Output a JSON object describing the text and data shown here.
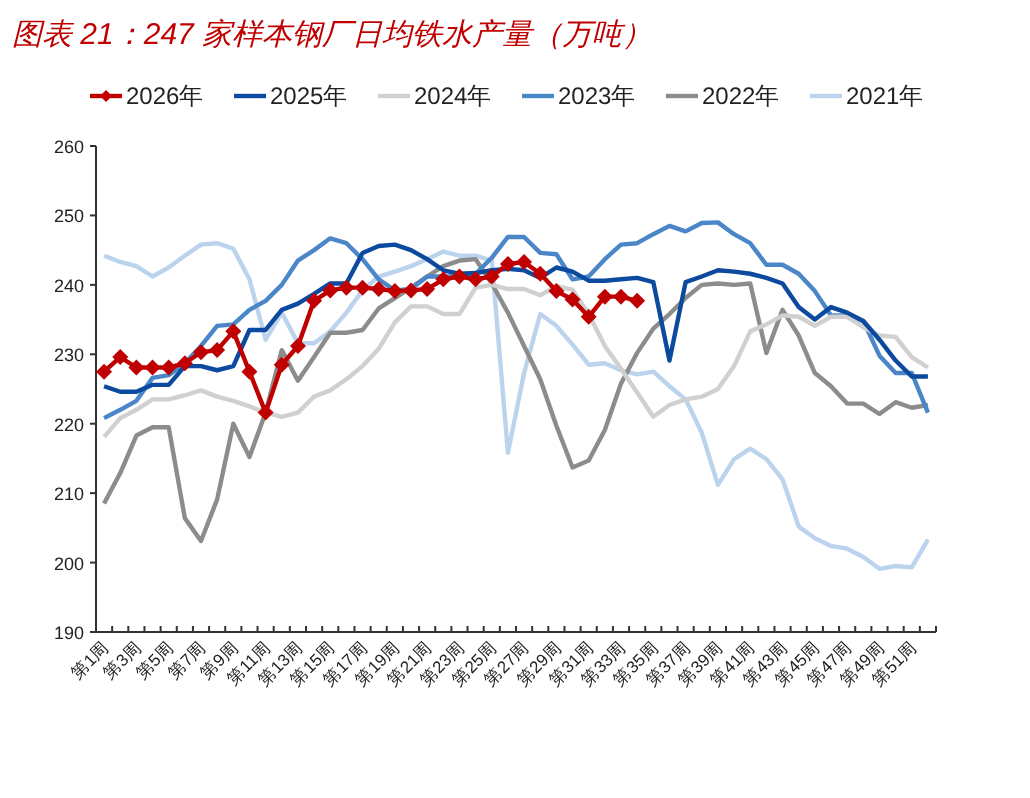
{
  "chart_data": {
    "type": "line",
    "title": "图表 21：247 家样本钢厂日均铁水产量（万吨）",
    "categories": [
      "第1周",
      null,
      "第3周",
      null,
      "第5周",
      null,
      "第7周",
      null,
      "第9周",
      null,
      "第11周",
      null,
      "第13周",
      null,
      "第15周",
      null,
      "第17周",
      null,
      "第19周",
      null,
      "第21周",
      null,
      "第23周",
      null,
      "第25周",
      null,
      "第27周",
      null,
      "第29周",
      null,
      "第31周",
      null,
      "第33周",
      null,
      "第35周",
      null,
      "第37周",
      null,
      "第39周",
      null,
      "第41周",
      null,
      "第43周",
      null,
      "第45周",
      null,
      "第47周",
      null,
      "第49周",
      null,
      "第51周",
      null
    ],
    "ylim": [
      190,
      260
    ],
    "yticks": [
      190,
      200,
      210,
      220,
      230,
      240,
      250,
      260
    ],
    "grid": false,
    "legend": "top",
    "series": [
      {
        "name": "2026年",
        "color": "#c00000",
        "marker": "diamond",
        "values": [
          227.5,
          229.6,
          228.1,
          228.1,
          228.1,
          228.7,
          230.3,
          230.6,
          233.3,
          227.5,
          221.6,
          228.5,
          231.2,
          237.7,
          239.2,
          239.6,
          239.6,
          239.4,
          239.1,
          239.2,
          239.4,
          240.8,
          241.2,
          240.8,
          241.2,
          243.0,
          243.3,
          241.6,
          239.1,
          237.9,
          235.4,
          238.3,
          238.3,
          237.7,
          null,
          null,
          null,
          null,
          null,
          null,
          null,
          null,
          null,
          null,
          null,
          null,
          null,
          null,
          null,
          null,
          null,
          null
        ]
      },
      {
        "name": "2025年",
        "color": "#0b4a9e",
        "values": [
          225.4,
          224.6,
          224.6,
          225.6,
          225.6,
          228.3,
          228.3,
          227.7,
          228.3,
          233.5,
          233.5,
          236.4,
          237.3,
          238.7,
          240.2,
          240.2,
          244.6,
          245.6,
          245.8,
          245.0,
          243.7,
          242.1,
          241.6,
          241.7,
          242.1,
          242.3,
          242.1,
          241.0,
          242.5,
          241.9,
          240.6,
          240.6,
          240.8,
          241.0,
          240.4,
          229.1,
          240.4,
          241.2,
          242.1,
          241.9,
          241.6,
          241.0,
          240.2,
          236.8,
          235.0,
          236.8,
          236.0,
          234.8,
          232.1,
          229.1,
          226.8,
          226.8
        ]
      },
      {
        "name": "2024年",
        "color": "#d0d0d0",
        "values": [
          218.1,
          220.8,
          222.0,
          223.5,
          223.5,
          224.1,
          224.8,
          223.9,
          223.3,
          222.5,
          221.6,
          221.0,
          221.6,
          223.9,
          224.8,
          226.4,
          228.3,
          230.8,
          234.6,
          236.9,
          236.9,
          235.8,
          235.8,
          239.6,
          240.0,
          239.4,
          239.4,
          238.5,
          239.8,
          239.3,
          235.8,
          231.2,
          227.9,
          224.5,
          221.0,
          222.7,
          223.5,
          223.9,
          225.0,
          228.3,
          233.3,
          234.3,
          235.6,
          235.4,
          234.1,
          235.4,
          235.4,
          233.9,
          232.7,
          232.5,
          229.6,
          228.1
        ]
      },
      {
        "name": "2023年",
        "color": "#4a86c8",
        "values": [
          220.8,
          222.0,
          223.3,
          226.6,
          227.0,
          228.7,
          231.2,
          234.1,
          234.3,
          236.4,
          237.7,
          240.0,
          243.5,
          245.0,
          246.7,
          246.0,
          243.7,
          240.8,
          239.2,
          239.4,
          241.2,
          241.2,
          241.2,
          241.6,
          243.9,
          246.9,
          246.9,
          244.6,
          244.4,
          240.8,
          241.2,
          243.7,
          245.8,
          246.0,
          247.3,
          248.5,
          247.7,
          248.9,
          249.0,
          247.3,
          246.0,
          242.9,
          242.9,
          241.6,
          239.1,
          235.6,
          235.6,
          234.8,
          229.8,
          227.3,
          227.3,
          221.6
        ]
      },
      {
        "name": "2022年",
        "color": "#8c8c8c",
        "values": [
          208.5,
          212.9,
          218.3,
          219.5,
          219.5,
          206.4,
          203.1,
          209.1,
          220.0,
          215.2,
          221.6,
          230.6,
          226.2,
          229.6,
          233.1,
          233.1,
          233.5,
          236.6,
          238.1,
          239.6,
          241.2,
          242.7,
          243.5,
          243.7,
          240.2,
          236.0,
          231.2,
          226.4,
          219.7,
          213.7,
          214.7,
          219.1,
          225.8,
          230.2,
          233.7,
          235.8,
          238.1,
          240.0,
          240.2,
          240.0,
          240.2,
          230.2,
          236.4,
          232.7,
          227.3,
          225.4,
          222.9,
          222.9,
          221.4,
          223.1,
          222.3,
          222.7
        ]
      },
      {
        "name": "2021年",
        "color": "#bcd3ee",
        "values": [
          244.2,
          243.3,
          242.7,
          241.2,
          242.5,
          244.2,
          245.8,
          246.0,
          245.2,
          240.8,
          232.1,
          236.0,
          231.6,
          231.6,
          233.3,
          236.0,
          239.2,
          241.2,
          241.9,
          242.7,
          243.7,
          244.8,
          244.2,
          244.2,
          243.5,
          215.8,
          227.3,
          235.8,
          234.1,
          231.4,
          228.5,
          228.7,
          227.7,
          227.1,
          227.5,
          225.4,
          223.5,
          218.7,
          211.2,
          214.9,
          216.4,
          214.9,
          212.0,
          205.2,
          203.5,
          202.4,
          202.0,
          200.8,
          199.1,
          199.5,
          199.3,
          203.3
        ]
      }
    ]
  }
}
